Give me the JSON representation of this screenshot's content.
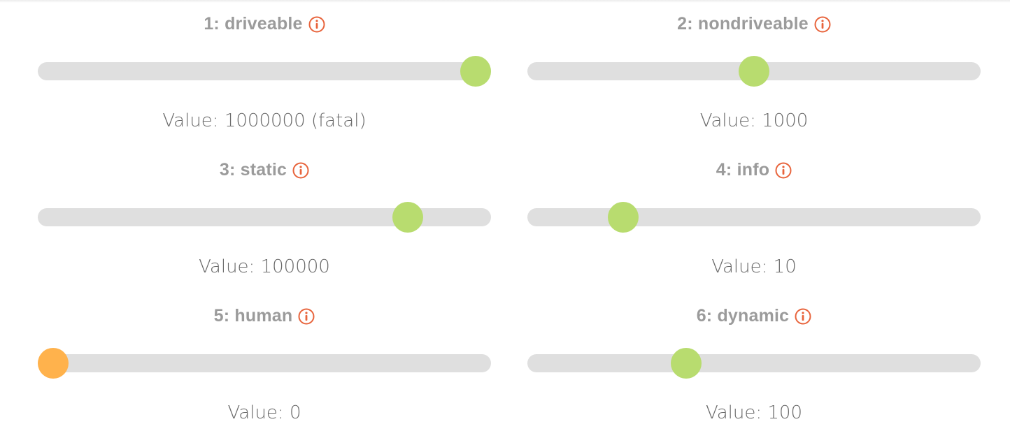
{
  "sliders": [
    {
      "id": 1,
      "title": "1: driveable",
      "value_label": "Value: 1000000 (fatal)",
      "level": 1.0,
      "thumb_color": "#b8dc6f"
    },
    {
      "id": 2,
      "title": "2: nondriveable",
      "value_label": "Value: 1000",
      "level": 0.5,
      "thumb_color": "#b8dc6f"
    },
    {
      "id": 3,
      "title": "3: static",
      "value_label": "Value: 100000",
      "level": 0.84,
      "thumb_color": "#b8dc6f"
    },
    {
      "id": 4,
      "title": "4: info",
      "value_label": "Value: 10",
      "level": 0.19,
      "thumb_color": "#b8dc6f"
    },
    {
      "id": 5,
      "title": "5: human",
      "value_label": "Value: 0",
      "level": 0.0,
      "thumb_color": "#ffb24c"
    },
    {
      "id": 6,
      "title": "6: dynamic",
      "value_label": "Value: 100",
      "level": 0.34,
      "thumb_color": "#b8dc6f"
    }
  ],
  "icons": {
    "info": "info-circle-icon"
  },
  "colors": {
    "title": "#9b9b9b",
    "info_icon": "#e8643c",
    "track": "#dfdfdf",
    "thumb_active": "#b8dc6f",
    "thumb_zero": "#ffb24c",
    "value_text": "#6a6a6a"
  }
}
